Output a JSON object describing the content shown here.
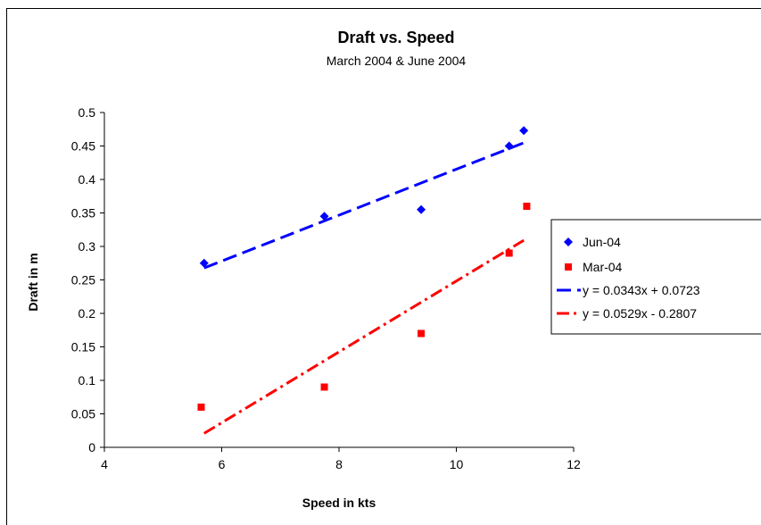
{
  "chart_data": {
    "type": "scatter",
    "title": "Draft vs. Speed",
    "subtitle": "March 2004 & June 2004",
    "xlabel": "Speed in kts",
    "ylabel": "Draft in m",
    "xlim": [
      4,
      12
    ],
    "ylim": [
      0,
      0.5
    ],
    "xticks": [
      4,
      6,
      8,
      10,
      12
    ],
    "yticks": [
      0,
      0.05,
      0.1,
      0.15,
      0.2,
      0.25,
      0.3,
      0.35,
      0.4,
      0.45,
      0.5
    ],
    "grid": false,
    "legend_position": "right",
    "series": [
      {
        "name": "Jun-04",
        "marker": "diamond",
        "color": "#0000ff",
        "x": [
          5.7,
          7.75,
          9.4,
          10.9,
          11.15
        ],
        "y": [
          0.275,
          0.345,
          0.355,
          0.45,
          0.473
        ]
      },
      {
        "name": "Mar-04",
        "marker": "square",
        "color": "#ff0000",
        "x": [
          5.65,
          7.75,
          9.4,
          10.9,
          11.2
        ],
        "y": [
          0.06,
          0.09,
          0.17,
          0.29,
          0.36
        ]
      }
    ],
    "trendlines": [
      {
        "name": "y = 0.0343x + 0.0723",
        "slope": 0.0343,
        "intercept": 0.0723,
        "x_range": [
          5.7,
          11.15
        ],
        "color": "#0000ff",
        "dash": "long-dash"
      },
      {
        "name": "y = 0.0529x - 0.2807",
        "slope": 0.0529,
        "intercept": -0.2807,
        "x_range": [
          5.7,
          11.15
        ],
        "color": "#ff0000",
        "dash": "dash-dot"
      }
    ]
  }
}
